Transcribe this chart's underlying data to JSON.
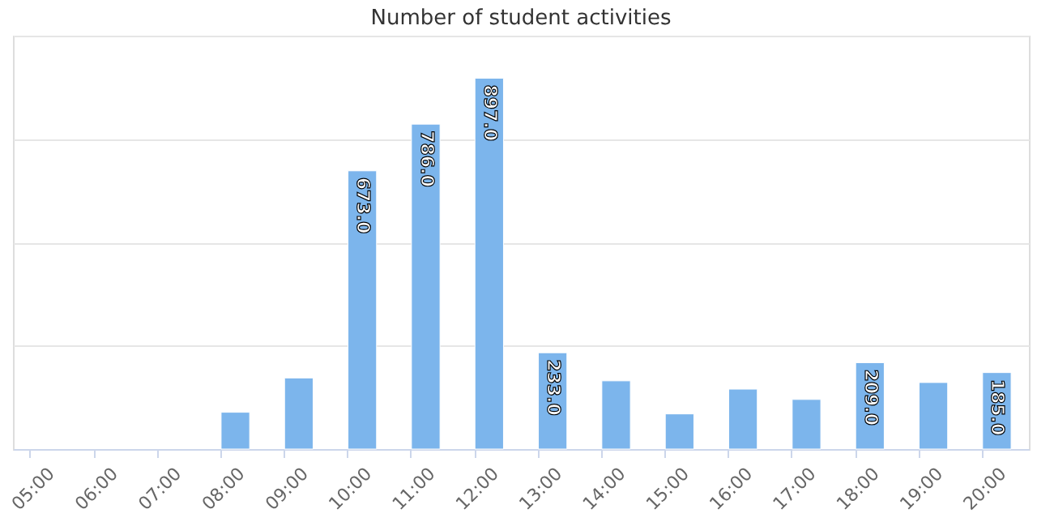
{
  "chart_data": {
    "type": "bar",
    "title": "Number of student activities",
    "categories": [
      "05:00",
      "06:00",
      "07:00",
      "08:00",
      "09:00",
      "10:00",
      "11:00",
      "12:00",
      "13:00",
      "14:00",
      "15:00",
      "16:00",
      "17:00",
      "18:00",
      "19:00",
      "20:00"
    ],
    "values": [
      null,
      null,
      null,
      89,
      172,
      673,
      786,
      897,
      233,
      165,
      85,
      145,
      120,
      209,
      161,
      185
    ],
    "value_labels": [
      null,
      null,
      null,
      null,
      null,
      "673.0",
      "786.0",
      "897.0",
      "233.0",
      null,
      null,
      null,
      null,
      "209.0",
      null,
      "185.0"
    ],
    "color": "#7cb5ec",
    "ylim": [
      0,
      1000
    ],
    "yticks": [
      {
        "value": 0,
        "label": null
      },
      {
        "value": 250,
        "label": null
      },
      {
        "value": 500,
        "label": null
      },
      {
        "value": 750,
        "label": null
      },
      {
        "value": 1000,
        "label": null
      }
    ],
    "grid": "y",
    "tick_labels": "x"
  }
}
